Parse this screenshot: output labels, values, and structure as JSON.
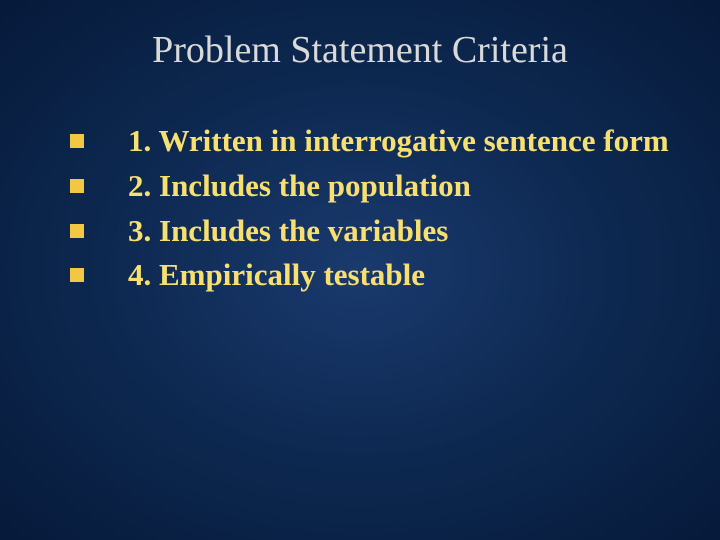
{
  "slide": {
    "title": "Problem Statement Criteria",
    "title_color": "#d9d9d9",
    "title_fontsize": 38,
    "background_gradient": {
      "center": "#1a3a6e",
      "mid": "#0d2850",
      "edge": "#061a3a"
    },
    "bullets": [
      {
        "text": "1. Written in interrogative sentence form"
      },
      {
        "text": "2. Includes the population"
      },
      {
        "text": "3. Includes the variables"
      },
      {
        "text": "4. Empirically testable"
      }
    ],
    "bullet_marker_color": "#f2c744",
    "bullet_marker_size": 14,
    "bullet_text_color": "#f7e070",
    "bullet_fontsize": 31,
    "bullet_fontweight": "bold",
    "font_family": "Georgia, 'Times New Roman', serif"
  }
}
